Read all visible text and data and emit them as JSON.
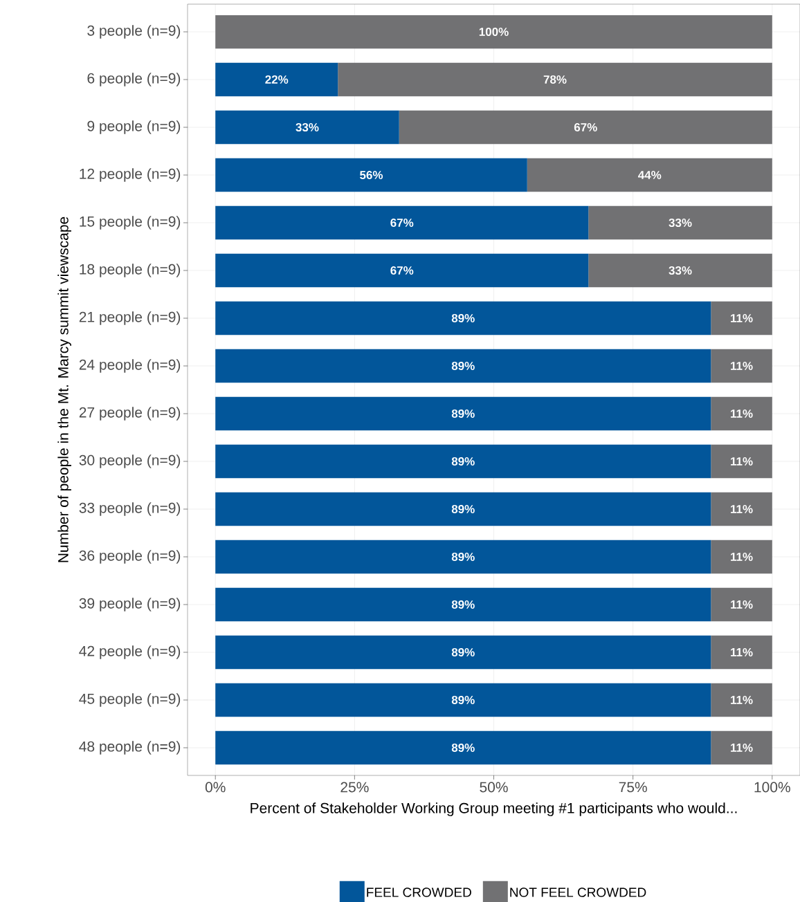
{
  "chart_data": {
    "type": "bar",
    "orientation": "horizontal",
    "stacked": true,
    "xlabel": "Percent of Stakeholder Working Group meeting #1 participants who would...",
    "ylabel": "Number of people in the Mt. Marcy summit viewscape",
    "categories": [
      "3 people (n=9)",
      "6 people (n=9)",
      "9 people (n=9)",
      "12 people (n=9)",
      "15 people (n=9)",
      "18 people (n=9)",
      "21 people (n=9)",
      "24 people (n=9)",
      "27 people (n=9)",
      "30 people (n=9)",
      "33 people (n=9)",
      "36 people (n=9)",
      "39 people (n=9)",
      "42 people (n=9)",
      "45 people (n=9)",
      "48 people (n=9)"
    ],
    "series": [
      {
        "name": "FEEL CROWDED",
        "color": "#02569a",
        "values": [
          0,
          22,
          33,
          56,
          67,
          67,
          89,
          89,
          89,
          89,
          89,
          89,
          89,
          89,
          89,
          89
        ],
        "value_labels": [
          null,
          "22%",
          "33%",
          "56%",
          "67%",
          "67%",
          "89%",
          "89%",
          "89%",
          "89%",
          "89%",
          "89%",
          "89%",
          "89%",
          "89%",
          "89%"
        ]
      },
      {
        "name": "NOT FEEL CROWDED",
        "color": "#717173",
        "values": [
          100,
          78,
          67,
          44,
          33,
          33,
          11,
          11,
          11,
          11,
          11,
          11,
          11,
          11,
          11,
          11
        ],
        "value_labels": [
          "100%",
          "78%",
          "67%",
          "44%",
          "33%",
          "33%",
          "11%",
          "11%",
          "11%",
          "11%",
          "11%",
          "11%",
          "11%",
          "11%",
          "11%",
          "11%"
        ]
      }
    ],
    "xlim": [
      -5,
      105
    ],
    "xticks": [
      {
        "value": 0,
        "label": "0%"
      },
      {
        "value": 25,
        "label": "25%"
      },
      {
        "value": 50,
        "label": "50%"
      },
      {
        "value": 75,
        "label": "75%"
      },
      {
        "value": 100,
        "label": "100%"
      }
    ],
    "grid": true,
    "legend": "bottom"
  }
}
